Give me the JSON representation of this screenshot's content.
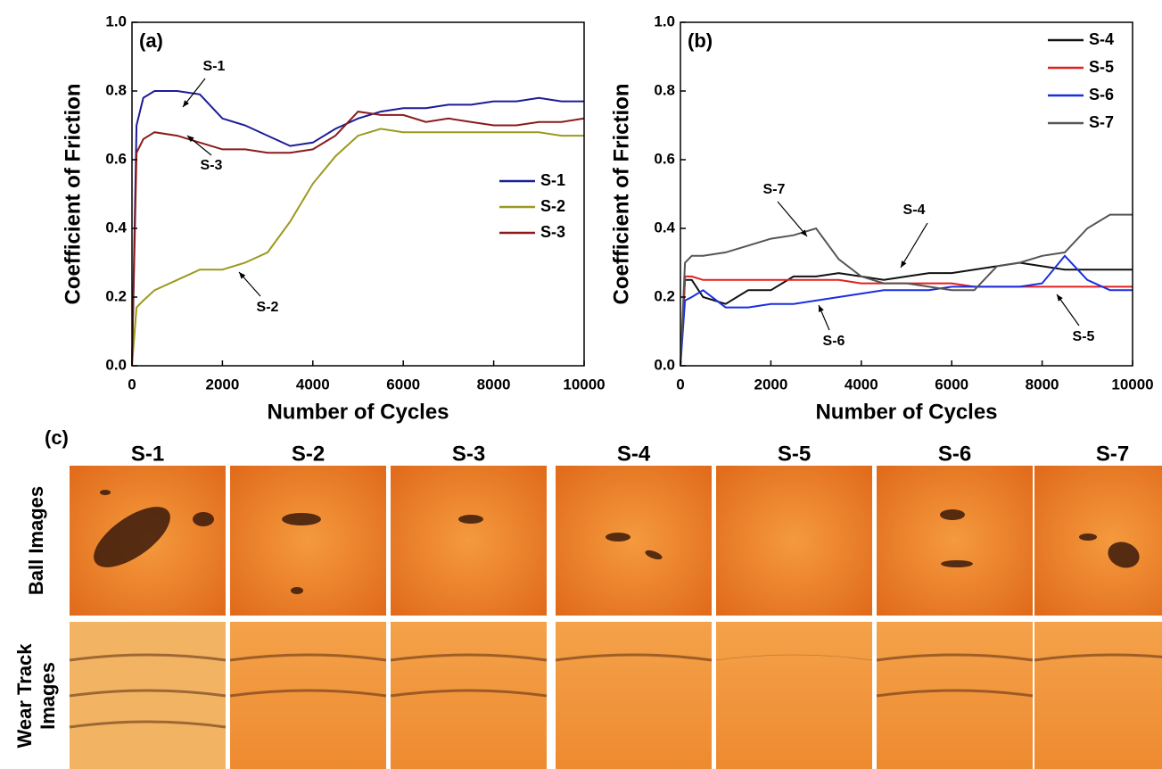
{
  "chart_data": [
    {
      "type": "line",
      "panel_label": "(a)",
      "xlabel": "Number of Cycles",
      "ylabel": "Coefficient of Friction",
      "x": [
        0,
        100,
        250,
        500,
        1000,
        1500,
        2000,
        2500,
        3000,
        3500,
        4000,
        4500,
        5000,
        5500,
        6000,
        6500,
        7000,
        7500,
        8000,
        8500,
        9000,
        9500,
        10000
      ],
      "series": [
        {
          "name": "S-1",
          "color": "#1c1c96",
          "values": [
            0,
            0.7,
            0.78,
            0.8,
            0.8,
            0.79,
            0.72,
            0.7,
            0.67,
            0.64,
            0.65,
            0.69,
            0.72,
            0.74,
            0.75,
            0.75,
            0.76,
            0.76,
            0.77,
            0.77,
            0.78,
            0.77,
            0.77
          ]
        },
        {
          "name": "S-2",
          "color": "#9a9a20",
          "values": [
            0,
            0.17,
            0.19,
            0.22,
            0.25,
            0.28,
            0.28,
            0.3,
            0.33,
            0.42,
            0.53,
            0.61,
            0.67,
            0.69,
            0.68,
            0.68,
            0.68,
            0.68,
            0.68,
            0.68,
            0.68,
            0.67,
            0.67
          ]
        },
        {
          "name": "S-3",
          "color": "#8b1a1a",
          "values": [
            0,
            0.62,
            0.66,
            0.68,
            0.67,
            0.65,
            0.63,
            0.63,
            0.62,
            0.62,
            0.63,
            0.67,
            0.74,
            0.73,
            0.73,
            0.71,
            0.72,
            0.71,
            0.7,
            0.7,
            0.71,
            0.71,
            0.72
          ]
        }
      ],
      "annotations": [
        "S-1",
        "S-3",
        "S-2"
      ],
      "xlim": [
        0,
        10000
      ],
      "xticks": [
        0,
        2000,
        4000,
        6000,
        8000,
        10000
      ],
      "ylim": [
        0,
        1
      ],
      "yticks": [
        {
          "value": 0,
          "label": "0.0"
        },
        0.2,
        0.4,
        0.6,
        0.8,
        {
          "value": 1,
          "label": "1.0"
        }
      ],
      "legend": "center right"
    },
    {
      "type": "line",
      "panel_label": "(b)",
      "xlabel": "Number of Cycles",
      "ylabel": "Coefficient of Friction",
      "x": [
        0,
        100,
        250,
        500,
        1000,
        1500,
        2000,
        2500,
        3000,
        3500,
        4000,
        4500,
        5000,
        5500,
        6000,
        6500,
        7000,
        7500,
        8000,
        8500,
        9000,
        9500,
        10000
      ],
      "series": [
        {
          "name": "S-4",
          "color": "#111111",
          "values": [
            0,
            0.25,
            0.25,
            0.2,
            0.18,
            0.22,
            0.22,
            0.26,
            0.26,
            0.27,
            0.26,
            0.25,
            0.26,
            0.27,
            0.27,
            0.28,
            0.29,
            0.3,
            0.29,
            0.28,
            0.28,
            0.28,
            0.28
          ]
        },
        {
          "name": "S-5",
          "color": "#e02020",
          "values": [
            0,
            0.26,
            0.26,
            0.25,
            0.25,
            0.25,
            0.25,
            0.25,
            0.25,
            0.25,
            0.24,
            0.24,
            0.24,
            0.24,
            0.24,
            0.23,
            0.23,
            0.23,
            0.23,
            0.23,
            0.23,
            0.23,
            0.23
          ]
        },
        {
          "name": "S-6",
          "color": "#1a2ee0",
          "values": [
            0,
            0.19,
            0.2,
            0.22,
            0.17,
            0.17,
            0.18,
            0.18,
            0.19,
            0.2,
            0.21,
            0.22,
            0.22,
            0.22,
            0.23,
            0.23,
            0.23,
            0.23,
            0.24,
            0.32,
            0.25,
            0.22,
            0.22
          ]
        },
        {
          "name": "S-7",
          "color": "#555555",
          "values": [
            0,
            0.3,
            0.32,
            0.32,
            0.33,
            0.35,
            0.37,
            0.38,
            0.4,
            0.31,
            0.26,
            0.24,
            0.24,
            0.23,
            0.22,
            0.22,
            0.29,
            0.3,
            0.32,
            0.33,
            0.4,
            0.44,
            0.44
          ]
        }
      ],
      "annotations": [
        "S-7",
        "S-4",
        "S-6",
        "S-5"
      ],
      "xlim": [
        0,
        10000
      ],
      "xticks": [
        0,
        2000,
        4000,
        6000,
        8000,
        10000
      ],
      "ylim": [
        0,
        1
      ],
      "yticks": [
        {
          "value": 0,
          "label": "0.0"
        },
        0.2,
        0.4,
        0.6,
        0.8,
        {
          "value": 1,
          "label": "1.0"
        }
      ],
      "legend": "upper right"
    }
  ],
  "panel_c": {
    "label": "(c)",
    "samples": [
      "S-1",
      "S-2",
      "S-3",
      "S-4",
      "S-5",
      "S-6",
      "S-7"
    ],
    "row_labels": [
      [
        "Ball Images"
      ],
      [
        "Wear Track",
        "Images"
      ]
    ]
  }
}
